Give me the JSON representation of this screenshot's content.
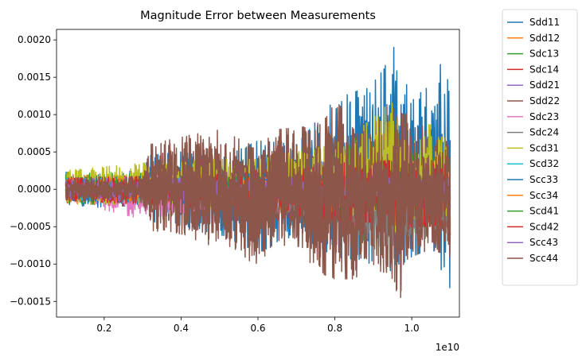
{
  "chart_data": {
    "type": "line",
    "title": "Magnitude Error between Measurements",
    "xlabel": "",
    "ylabel": "",
    "x_offset_label": "1e10",
    "xlim": [
      0.076,
      1.124
    ],
    "ylim": [
      -0.00171,
      0.00214
    ],
    "x_ticks": [
      {
        "value": 0.2,
        "label": "0.2"
      },
      {
        "value": 0.4,
        "label": "0.4"
      },
      {
        "value": 0.6,
        "label": "0.6"
      },
      {
        "value": 0.8,
        "label": "0.8"
      },
      {
        "value": 1.0,
        "label": "1.0"
      }
    ],
    "y_ticks": [
      {
        "value": -0.0015,
        "label": "−0.0015"
      },
      {
        "value": -0.001,
        "label": "−0.0010"
      },
      {
        "value": -0.0005,
        "label": "−0.0005"
      },
      {
        "value": 0.0,
        "label": "0.0000"
      },
      {
        "value": 0.0005,
        "label": "0.0005"
      },
      {
        "value": 0.001,
        "label": "0.0010"
      },
      {
        "value": 0.0015,
        "label": "0.0015"
      },
      {
        "value": 0.002,
        "label": "0.0020"
      }
    ],
    "grid": false,
    "legend_position": "outside-right",
    "series": [
      {
        "name": "Sdd11",
        "color": "#1f77b4",
        "env_x": [
          0.1,
          0.2,
          0.3,
          0.32,
          0.4,
          0.5,
          0.6,
          0.7,
          0.8,
          0.9,
          0.95,
          1.0,
          1.05,
          1.1
        ],
        "env_upper": [
          0.00023,
          0.0002,
          0.00026,
          0.00045,
          0.0005,
          0.0004,
          0.00065,
          0.0006,
          0.0012,
          0.0014,
          0.00195,
          0.0012,
          0.0014,
          0.00195
        ],
        "env_lower": [
          -0.0002,
          -0.00025,
          -0.0002,
          -0.00045,
          -0.0005,
          -0.0006,
          -0.00085,
          -0.0006,
          -0.0009,
          -0.001,
          -0.0011,
          -0.0009,
          -0.0008,
          -0.00155
        ]
      },
      {
        "name": "Sdd12",
        "color": "#ff7f0e",
        "env_x": [
          0.1,
          0.5,
          0.8,
          1.1
        ],
        "env_upper": [
          0.0002,
          0.00015,
          0.0002,
          0.00025
        ],
        "env_lower": [
          -0.00018,
          -0.00015,
          -0.0002,
          -0.00022
        ]
      },
      {
        "name": "Sdc13",
        "color": "#2ca02c",
        "env_x": [
          0.1,
          0.5,
          0.8,
          0.85,
          1.1
        ],
        "env_upper": [
          0.00022,
          0.0002,
          0.00035,
          0.0007,
          0.0004
        ],
        "env_lower": [
          -0.0002,
          -0.0002,
          -0.0004,
          -0.0007,
          -0.0005
        ]
      },
      {
        "name": "Sdc14",
        "color": "#d62728",
        "env_x": [
          0.1,
          0.5,
          0.8,
          1.1
        ],
        "env_upper": [
          0.00015,
          0.00022,
          0.0003,
          0.0004
        ],
        "env_lower": [
          -0.00018,
          -0.0003,
          -0.00045,
          -0.0006
        ]
      },
      {
        "name": "Sdd21",
        "color": "#9467bd",
        "env_x": [
          0.1,
          0.5,
          1.1
        ],
        "env_upper": [
          0.00012,
          0.00012,
          0.00015
        ],
        "env_lower": [
          -0.00012,
          -0.00012,
          -0.00015
        ]
      },
      {
        "name": "Sdd22",
        "color": "#8c564b",
        "env_x": [
          0.1,
          0.3,
          0.32,
          0.4,
          0.5,
          0.6,
          0.65,
          0.75,
          0.8,
          0.85,
          0.9,
          0.97,
          1.0,
          1.05,
          1.1
        ],
        "env_upper": [
          0.00015,
          0.00015,
          0.0006,
          0.0007,
          0.0008,
          0.00055,
          0.0008,
          0.00085,
          0.0012,
          0.0009,
          0.00085,
          0.0016,
          0.0009,
          0.0008,
          0.0006
        ],
        "env_lower": [
          -0.00015,
          -0.00015,
          -0.00055,
          -0.0006,
          -0.0008,
          -0.001,
          -0.0007,
          -0.0011,
          -0.0012,
          -0.0012,
          -0.001,
          -0.0015,
          -0.0009,
          -0.0008,
          -0.0009
        ]
      },
      {
        "name": "Sdc23",
        "color": "#e377c2",
        "env_x": [
          0.1,
          0.3,
          0.6,
          1.1
        ],
        "env_upper": [
          0.00015,
          0.0002,
          0.00015,
          0.0002
        ],
        "env_lower": [
          -0.00015,
          -0.0004,
          -0.00015,
          -0.0002
        ]
      },
      {
        "name": "Sdc24",
        "color": "#7f7f7f",
        "env_x": [
          0.1,
          0.5,
          0.8,
          0.9,
          1.1
        ],
        "env_upper": [
          0.00012,
          0.00015,
          0.0002,
          0.00025,
          0.0003
        ],
        "env_lower": [
          -0.00012,
          -0.00025,
          -0.0004,
          -0.0008,
          -0.0006
        ]
      },
      {
        "name": "Scd31",
        "color": "#bcbd22",
        "env_x": [
          0.1,
          0.3,
          0.5,
          0.6,
          0.8,
          0.9,
          0.95,
          1.0,
          1.05,
          1.1
        ],
        "env_upper": [
          0.00025,
          0.00035,
          0.0004,
          0.0004,
          0.0006,
          0.00095,
          0.0012,
          0.0006,
          0.0009,
          0.0006
        ],
        "env_lower": [
          -0.0002,
          -0.0002,
          -0.00025,
          -0.00025,
          -0.0003,
          -0.0004,
          -0.0006,
          -0.0004,
          -0.0004,
          -0.0004
        ]
      },
      {
        "name": "Scd32",
        "color": "#17becf",
        "env_x": [
          0.1,
          0.5,
          1.1
        ],
        "env_upper": [
          0.00015,
          0.00015,
          0.00015
        ],
        "env_lower": [
          -0.00015,
          -0.00015,
          -0.00015
        ]
      },
      {
        "name": "Scc33",
        "color": "#1f77b4",
        "env_x": [
          0.1,
          0.5,
          1.1
        ],
        "env_upper": [
          0.00015,
          0.0002,
          0.00025
        ],
        "env_lower": [
          -0.00015,
          -0.0002,
          -0.00025
        ]
      },
      {
        "name": "Scc34",
        "color": "#ff7f0e",
        "env_x": [
          0.1,
          0.5,
          1.1
        ],
        "env_upper": [
          0.00015,
          0.00015,
          0.00018
        ],
        "env_lower": [
          -0.00015,
          -0.00015,
          -0.00018
        ]
      },
      {
        "name": "Scd41",
        "color": "#2ca02c",
        "env_x": [
          0.1,
          0.5,
          0.8,
          1.1
        ],
        "env_upper": [
          0.00012,
          0.00015,
          0.0002,
          0.00025
        ],
        "env_lower": [
          -0.00012,
          -0.00015,
          -0.0002,
          -0.00025
        ]
      },
      {
        "name": "Scd42",
        "color": "#d62728",
        "env_x": [
          0.1,
          0.5,
          0.8,
          1.0,
          1.1
        ],
        "env_upper": [
          0.00015,
          0.0002,
          0.00035,
          0.0004,
          0.00045
        ],
        "env_lower": [
          -0.00015,
          -0.00025,
          -0.0004,
          -0.0005,
          -0.0005
        ]
      },
      {
        "name": "Scc43",
        "color": "#9467bd",
        "env_x": [
          0.1,
          0.5,
          1.1
        ],
        "env_upper": [
          0.00014,
          0.00015,
          0.00018
        ],
        "env_lower": [
          -0.00014,
          -0.00015,
          -0.00018
        ]
      },
      {
        "name": "Scc44",
        "color": "#8c564b",
        "env_x": [
          0.1,
          0.3,
          0.32,
          0.4,
          0.5,
          0.6,
          0.65,
          0.75,
          0.8,
          0.85,
          0.9,
          0.97,
          1.0,
          1.05,
          1.1
        ],
        "env_upper": [
          0.00015,
          0.00018,
          0.00055,
          0.00065,
          0.0006,
          0.00055,
          0.0007,
          0.0008,
          0.0011,
          0.0008,
          0.0008,
          0.00145,
          0.0008,
          0.0006,
          0.0005
        ],
        "env_lower": [
          -0.00015,
          -0.00018,
          -0.0005,
          -0.0006,
          -0.0007,
          -0.0009,
          -0.0006,
          -0.001,
          -0.0011,
          -0.0011,
          -0.0009,
          -0.0014,
          -0.0008,
          -0.0007,
          -0.0008
        ]
      }
    ]
  }
}
